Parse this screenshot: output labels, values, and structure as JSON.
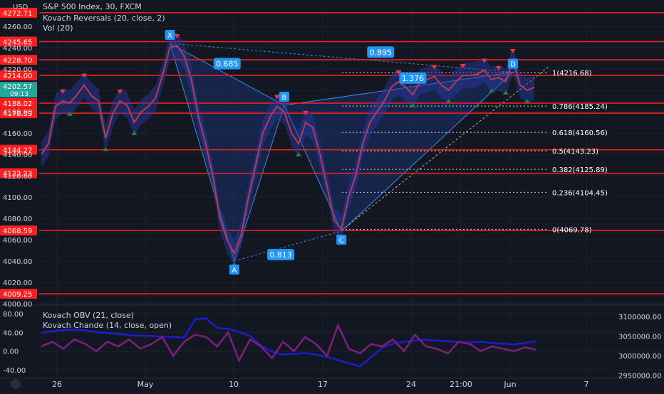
{
  "header": {
    "currency": "USD",
    "symbol_line": "S&P 500 Index, 30, FXCM",
    "indicator_1": "Kovach Reversals (20, close, 2)",
    "indicator_2": "Vol (20)",
    "osc_1": "Kovach OBV (21, close)",
    "osc_2": "Kovach Chande (14, close, open)",
    "current_price": "4202.57",
    "countdown": "09:13"
  },
  "colors": {
    "background": "#131722",
    "grid": "#1e2230",
    "level_line": "#ff1e1e",
    "pattern_fill": "#2962ff",
    "pattern_line": "#3d8fd6",
    "label_blue": "#2196f3",
    "price_label": "#26a69a",
    "obv": "#1a1fd6",
    "chande": "#7b1f7a",
    "text": "#d1d4dc"
  },
  "chart_data": [
    {
      "type": "line",
      "title": "S&P 500 Index, 30, FXCM",
      "x_ticks": [
        "26",
        "May",
        "10",
        "17",
        "24",
        "21:00",
        "Jun",
        "7"
      ],
      "y_ticks": [
        "4000.00",
        "4020.00",
        "4040.00",
        "4060.00",
        "4080.00",
        "4100.00",
        "4120.00",
        "4140.00",
        "4160.00",
        "4180.00",
        "4200.00",
        "4220.00",
        "4240.00",
        "4260.00"
      ],
      "ylim": [
        4000,
        4278
      ],
      "price": [
        4140,
        4150,
        4185,
        4190,
        4188,
        4196,
        4205,
        4195,
        4190,
        4155,
        4178,
        4190,
        4186,
        4170,
        4180,
        4185,
        4193,
        4215,
        4240,
        4242,
        4232,
        4210,
        4175,
        4150,
        4120,
        4080,
        4060,
        4047,
        4065,
        4100,
        4130,
        4160,
        4175,
        4185,
        4180,
        4160,
        4150,
        4170,
        4165,
        4140,
        4110,
        4078,
        4070,
        4100,
        4120,
        4150,
        4170,
        4180,
        4190,
        4203,
        4208,
        4203,
        4196,
        4208,
        4210,
        4213,
        4205,
        4200,
        4208,
        4214,
        4214,
        4215,
        4219,
        4210,
        4212,
        4208,
        4228,
        4205,
        4200,
        4203
      ],
      "horizontal_levels": [
        {
          "label": "4272.71",
          "value": 4272.71
        },
        {
          "label": "4245.65",
          "value": 4245.65
        },
        {
          "label": "4228.70",
          "value": 4228.7
        },
        {
          "label": "4214.00",
          "value": 4214.0
        },
        {
          "label": "4188.02",
          "value": 4188.02
        },
        {
          "label": "4178.59",
          "value": 4178.59
        },
        {
          "label": "4144.27",
          "value": 4144.27
        },
        {
          "label": "4122.23",
          "value": 4122.23
        },
        {
          "label": "4068.59",
          "value": 4068.59
        },
        {
          "label": "4009.25",
          "value": 4009.25
        }
      ],
      "fibonacci": [
        {
          "label": "1(4216.68)",
          "value": 4216.68
        },
        {
          "label": "0.786(4185.24)",
          "value": 4185.24
        },
        {
          "label": "0.618(4160.56)",
          "value": 4160.56
        },
        {
          "label": "0.5(4143.23)",
          "value": 4143.23
        },
        {
          "label": "0.382(4125.89)",
          "value": 4125.89
        },
        {
          "label": "0.236(4104.45)",
          "value": 4104.45
        },
        {
          "label": "0(4069.78)",
          "value": 4069.78
        }
      ],
      "harmonic_points": [
        {
          "name": "X",
          "value": 4244
        },
        {
          "name": "A",
          "value": 4040
        },
        {
          "name": "B",
          "value": 4186
        },
        {
          "name": "C",
          "value": 4068
        },
        {
          "name": "D",
          "value": 4217
        }
      ],
      "ratios": [
        "0.685",
        "0.813",
        "0.895",
        "1.376"
      ]
    },
    {
      "type": "line",
      "y_ticks_left": [
        "80.00",
        "40.00",
        "0.00",
        "-40.00"
      ],
      "ylim_left": [
        -55,
        95
      ],
      "y_ticks_right": [
        "3100000.00",
        "3050000.00",
        "3000000.00",
        "2950000.00"
      ],
      "ylim_right": [
        2945000,
        3125000
      ],
      "series": [
        {
          "name": "Kovach OBV (21, close)",
          "axis": "right",
          "values": [
            3058000,
            3062000,
            3065000,
            3066000,
            3064000,
            3060000,
            3057000,
            3055000,
            3052000,
            3050000,
            3050000,
            3048000,
            3047000,
            3046000,
            3092000,
            3095000,
            3070000,
            3068000,
            3060000,
            3050000,
            3025000,
            3010000,
            3002000,
            3004000,
            3006000,
            3002000,
            2996000,
            2988000,
            2980000,
            2972000,
            2995000,
            3020000,
            3030000,
            3035000,
            3038000,
            3040000,
            3038000,
            3036000,
            3034000,
            3033000,
            3035000,
            3032000,
            3030000,
            3028000,
            3032000,
            3036000
          ]
        },
        {
          "name": "Kovach Chande (14, close, open)",
          "axis": "left",
          "values": [
            10,
            20,
            5,
            25,
            15,
            0,
            20,
            10,
            25,
            5,
            15,
            30,
            -10,
            20,
            35,
            30,
            10,
            40,
            -20,
            25,
            10,
            -15,
            20,
            0,
            30,
            15,
            -10,
            55,
            5,
            -5,
            15,
            10,
            25,
            0,
            35,
            10,
            5,
            -5,
            20,
            15,
            0,
            10,
            5,
            0,
            8,
            3
          ]
        }
      ]
    }
  ]
}
